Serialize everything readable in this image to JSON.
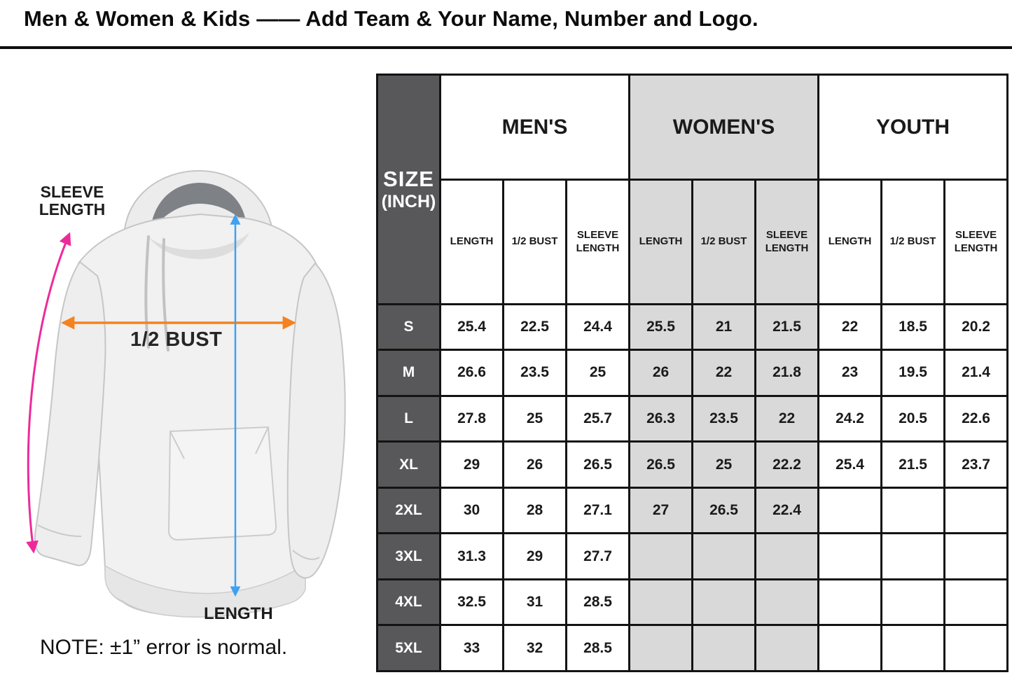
{
  "header": {
    "title": "Men & Women & Kids —— Add Team & Your Name, Number and Logo."
  },
  "diagram": {
    "sleeve_length_label": "SLEEVE LENGTH",
    "bust_label": "1/2 BUST",
    "length_label": "LENGTH",
    "note": "NOTE: ±1” error is normal.",
    "arrow_colors": {
      "sleeve_length": "#ee2a9b",
      "half_bust": "#f5821f",
      "length": "#3fa1f0"
    }
  },
  "chart_data": {
    "type": "table",
    "title": "Hoodie size chart in inches for Men's, Women's and Youth",
    "unit": "INCH",
    "corner": {
      "line1": "SIZE",
      "line2": "(INCH)"
    },
    "groups": [
      "MEN'S",
      "WOMEN'S",
      "YOUTH"
    ],
    "sub_headers": [
      "LENGTH",
      "1/2 BUST",
      "SLEEVE LENGTH"
    ],
    "rows": [
      {
        "size": "S",
        "values": [
          "25.4",
          "22.5",
          "24.4",
          "25.5",
          "21",
          "21.5",
          "22",
          "18.5",
          "20.2"
        ]
      },
      {
        "size": "M",
        "values": [
          "26.6",
          "23.5",
          "25",
          "26",
          "22",
          "21.8",
          "23",
          "19.5",
          "21.4"
        ]
      },
      {
        "size": "L",
        "values": [
          "27.8",
          "25",
          "25.7",
          "26.3",
          "23.5",
          "22",
          "24.2",
          "20.5",
          "22.6"
        ]
      },
      {
        "size": "XL",
        "values": [
          "29",
          "26",
          "26.5",
          "26.5",
          "25",
          "22.2",
          "25.4",
          "21.5",
          "23.7"
        ]
      },
      {
        "size": "2XL",
        "values": [
          "30",
          "28",
          "27.1",
          "27",
          "26.5",
          "22.4",
          "",
          "",
          ""
        ]
      },
      {
        "size": "3XL",
        "values": [
          "31.3",
          "29",
          "27.7",
          "",
          "",
          "",
          "",
          "",
          ""
        ]
      },
      {
        "size": "4XL",
        "values": [
          "32.5",
          "31",
          "28.5",
          "",
          "",
          "",
          "",
          "",
          ""
        ]
      },
      {
        "size": "5XL",
        "values": [
          "33",
          "32",
          "28.5",
          "",
          "",
          "",
          "",
          "",
          ""
        ]
      }
    ],
    "colors": {
      "header_dark": "#58585a",
      "womens_gray": "#d9d9d9",
      "border": "#131313"
    }
  }
}
